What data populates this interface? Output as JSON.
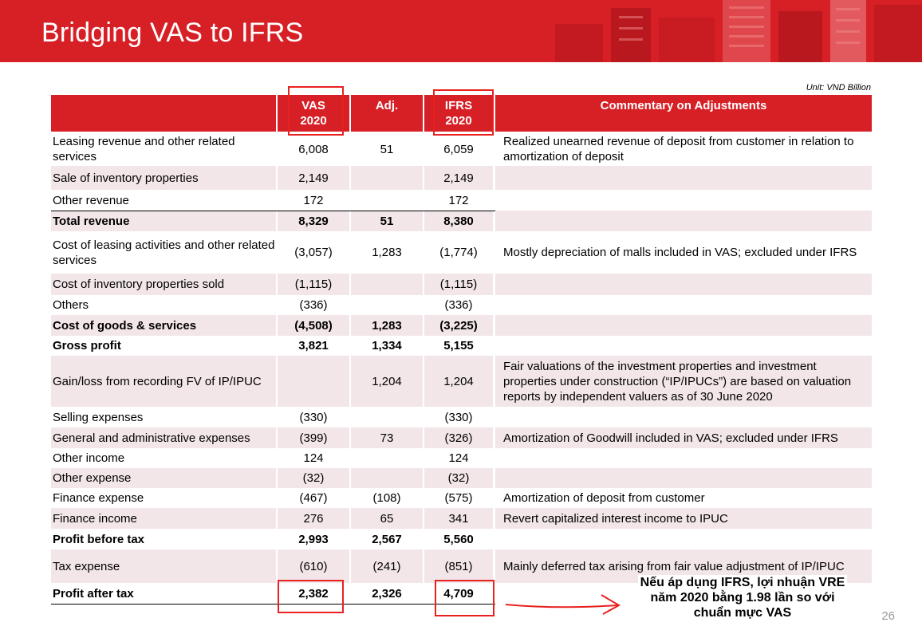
{
  "header": {
    "title": "Bridging VAS to IFRS"
  },
  "unit": "Unit: VND Billion",
  "columns": {
    "vas_line1": "VAS",
    "vas_line2": "2020",
    "adj": "Adj.",
    "ifrs_line1": "IFRS",
    "ifrs_line2": "2020",
    "commentary": "Commentary on Adjustments"
  },
  "rows": [
    {
      "label": "Leasing revenue and other related services",
      "vas": "6,008",
      "adj": "51",
      "ifrs": "6,059",
      "comment": "Realized unearned revenue of deposit from customer in relation to amortization of deposit",
      "bold": false
    },
    {
      "label": "Sale of inventory properties",
      "vas": "2,149",
      "adj": "",
      "ifrs": "2,149",
      "comment": "",
      "bold": false
    },
    {
      "label": "Other revenue",
      "vas": "172",
      "adj": "",
      "ifrs": "172",
      "comment": "",
      "bold": false
    },
    {
      "label": "Total revenue",
      "vas": "8,329",
      "adj": "51",
      "ifrs": "8,380",
      "comment": "",
      "bold": true
    },
    {
      "label": "Cost of leasing activities and other related services",
      "vas": "(3,057)",
      "adj": "1,283",
      "ifrs": "(1,774)",
      "comment": "Mostly depreciation of malls included in VAS; excluded under IFRS",
      "bold": false
    },
    {
      "label": "Cost of inventory properties sold",
      "vas": "(1,115)",
      "adj": "",
      "ifrs": "(1,115)",
      "comment": "",
      "bold": false
    },
    {
      "label": "Others",
      "vas": "(336)",
      "adj": "",
      "ifrs": "(336)",
      "comment": "",
      "bold": false
    },
    {
      "label": "Cost of goods & services",
      "vas": "(4,508)",
      "adj": "1,283",
      "ifrs": "(3,225)",
      "comment": "",
      "bold": true
    },
    {
      "label": "Gross profit",
      "vas": "3,821",
      "adj": "1,334",
      "ifrs": "5,155",
      "comment": "",
      "bold": true
    },
    {
      "label": "Gain/loss from recording FV of IP/IPUC",
      "vas": "",
      "adj": "1,204",
      "ifrs": "1,204",
      "comment": "Fair valuations of the investment properties and investment properties under construction (“IP/IPUCs”) are based on valuation reports by independent valuers as of 30 June 2020",
      "bold": false
    },
    {
      "label": "Selling expenses",
      "vas": "(330)",
      "adj": "",
      "ifrs": "(330)",
      "comment": "",
      "bold": false
    },
    {
      "label": "General and administrative expenses",
      "vas": "(399)",
      "adj": "73",
      "ifrs": "(326)",
      "comment": "Amortization of Goodwill included in VAS; excluded under IFRS",
      "bold": false
    },
    {
      "label": "Other income",
      "vas": "124",
      "adj": "",
      "ifrs": "124",
      "comment": "",
      "bold": false
    },
    {
      "label": "Other expense",
      "vas": "(32)",
      "adj": "",
      "ifrs": "(32)",
      "comment": "",
      "bold": false
    },
    {
      "label": "Finance expense",
      "vas": "(467)",
      "adj": "(108)",
      "ifrs": "(575)",
      "comment": "Amortization of deposit from customer",
      "bold": false
    },
    {
      "label": "Finance income",
      "vas": "276",
      "adj": "65",
      "ifrs": "341",
      "comment": "Revert capitalized interest income to IPUC",
      "bold": false
    },
    {
      "label": "Profit before tax",
      "vas": "2,993",
      "adj": "2,567",
      "ifrs": "5,560",
      "comment": "",
      "bold": true
    },
    {
      "label": "Tax expense",
      "vas": "(610)",
      "adj": "(241)",
      "ifrs": "(851)",
      "comment": "Mainly deferred tax arising from fair value adjustment of IP/IPUC",
      "bold": false
    },
    {
      "label": "Profit after tax",
      "vas": "2,382",
      "adj": "2,326",
      "ifrs": "4,709",
      "comment": "",
      "bold": true
    }
  ],
  "note": "Nếu áp dụng IFRS, lợi nhuận VRE năm 2020 bằng 1.98 lần so với chuẩn mực VAS",
  "page_number": "26",
  "colors": {
    "brand_red": "#d71f26",
    "row_shade": "#f2e6e8",
    "annotation_red": "#e8211f"
  }
}
